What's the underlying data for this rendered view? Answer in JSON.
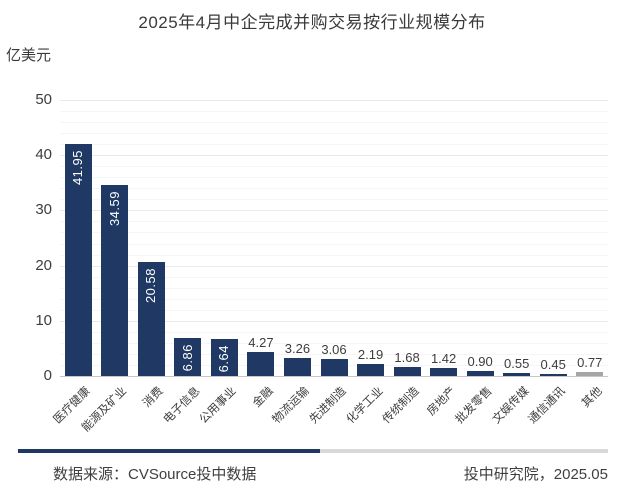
{
  "title": "2025年4月中企完成并购交易按行业规模分布",
  "unit_label": "亿美元",
  "chart_data": {
    "type": "bar",
    "title": "2025年4月中企完成并购交易按行业规模分布",
    "xlabel": "",
    "ylabel": "亿美元",
    "categories": [
      "医疗健康",
      "能源及矿业",
      "消费",
      "电子信息",
      "公用事业",
      "金融",
      "物流运输",
      "先进制造",
      "化学工业",
      "传统制造",
      "房地产",
      "批发零售",
      "文娱传媒",
      "通信通讯",
      "其他"
    ],
    "values": [
      41.95,
      34.59,
      20.58,
      6.86,
      6.64,
      4.27,
      3.26,
      3.06,
      2.19,
      1.68,
      1.42,
      0.9,
      0.55,
      0.45,
      0.77
    ],
    "value_labels": [
      "41.95",
      "34.59",
      "20.58",
      "6.86",
      "6.64",
      "4.27",
      "3.26",
      "3.06",
      "2.19",
      "1.68",
      "1.42",
      "0.90",
      "0.55",
      "0.45",
      "0.77"
    ],
    "bar_colors": [
      "#1F3864",
      "#1F3864",
      "#1F3864",
      "#1F3864",
      "#1F3864",
      "#1F3864",
      "#1F3864",
      "#1F3864",
      "#1F3864",
      "#1F3864",
      "#1F3864",
      "#1F3864",
      "#1F3864",
      "#1F3864",
      "#A6A6A6"
    ],
    "ylim": [
      0,
      50
    ],
    "yticks": [
      0,
      10,
      20,
      30,
      40,
      50
    ],
    "minor_grid_step": 2,
    "grid": "horizontal",
    "legend": "none",
    "inside_label_min": 6,
    "inside_label_color": "#ffffff",
    "outside_label_color": "#3d3d3d"
  },
  "footer": {
    "source": "数据来源：CVSource投中数据",
    "right": "投中研究院，2025.05",
    "divider_navy": "#1F3864",
    "divider_gray": "#D9D9D9"
  },
  "colors": {
    "accent_navy": "#1F3864",
    "other_gray": "#A6A6A6",
    "text": "#3d3d3d",
    "gridline_minor": "#f5f5f5",
    "gridline_major": "#e9e9e9",
    "axis_line": "#c6c6c6"
  }
}
